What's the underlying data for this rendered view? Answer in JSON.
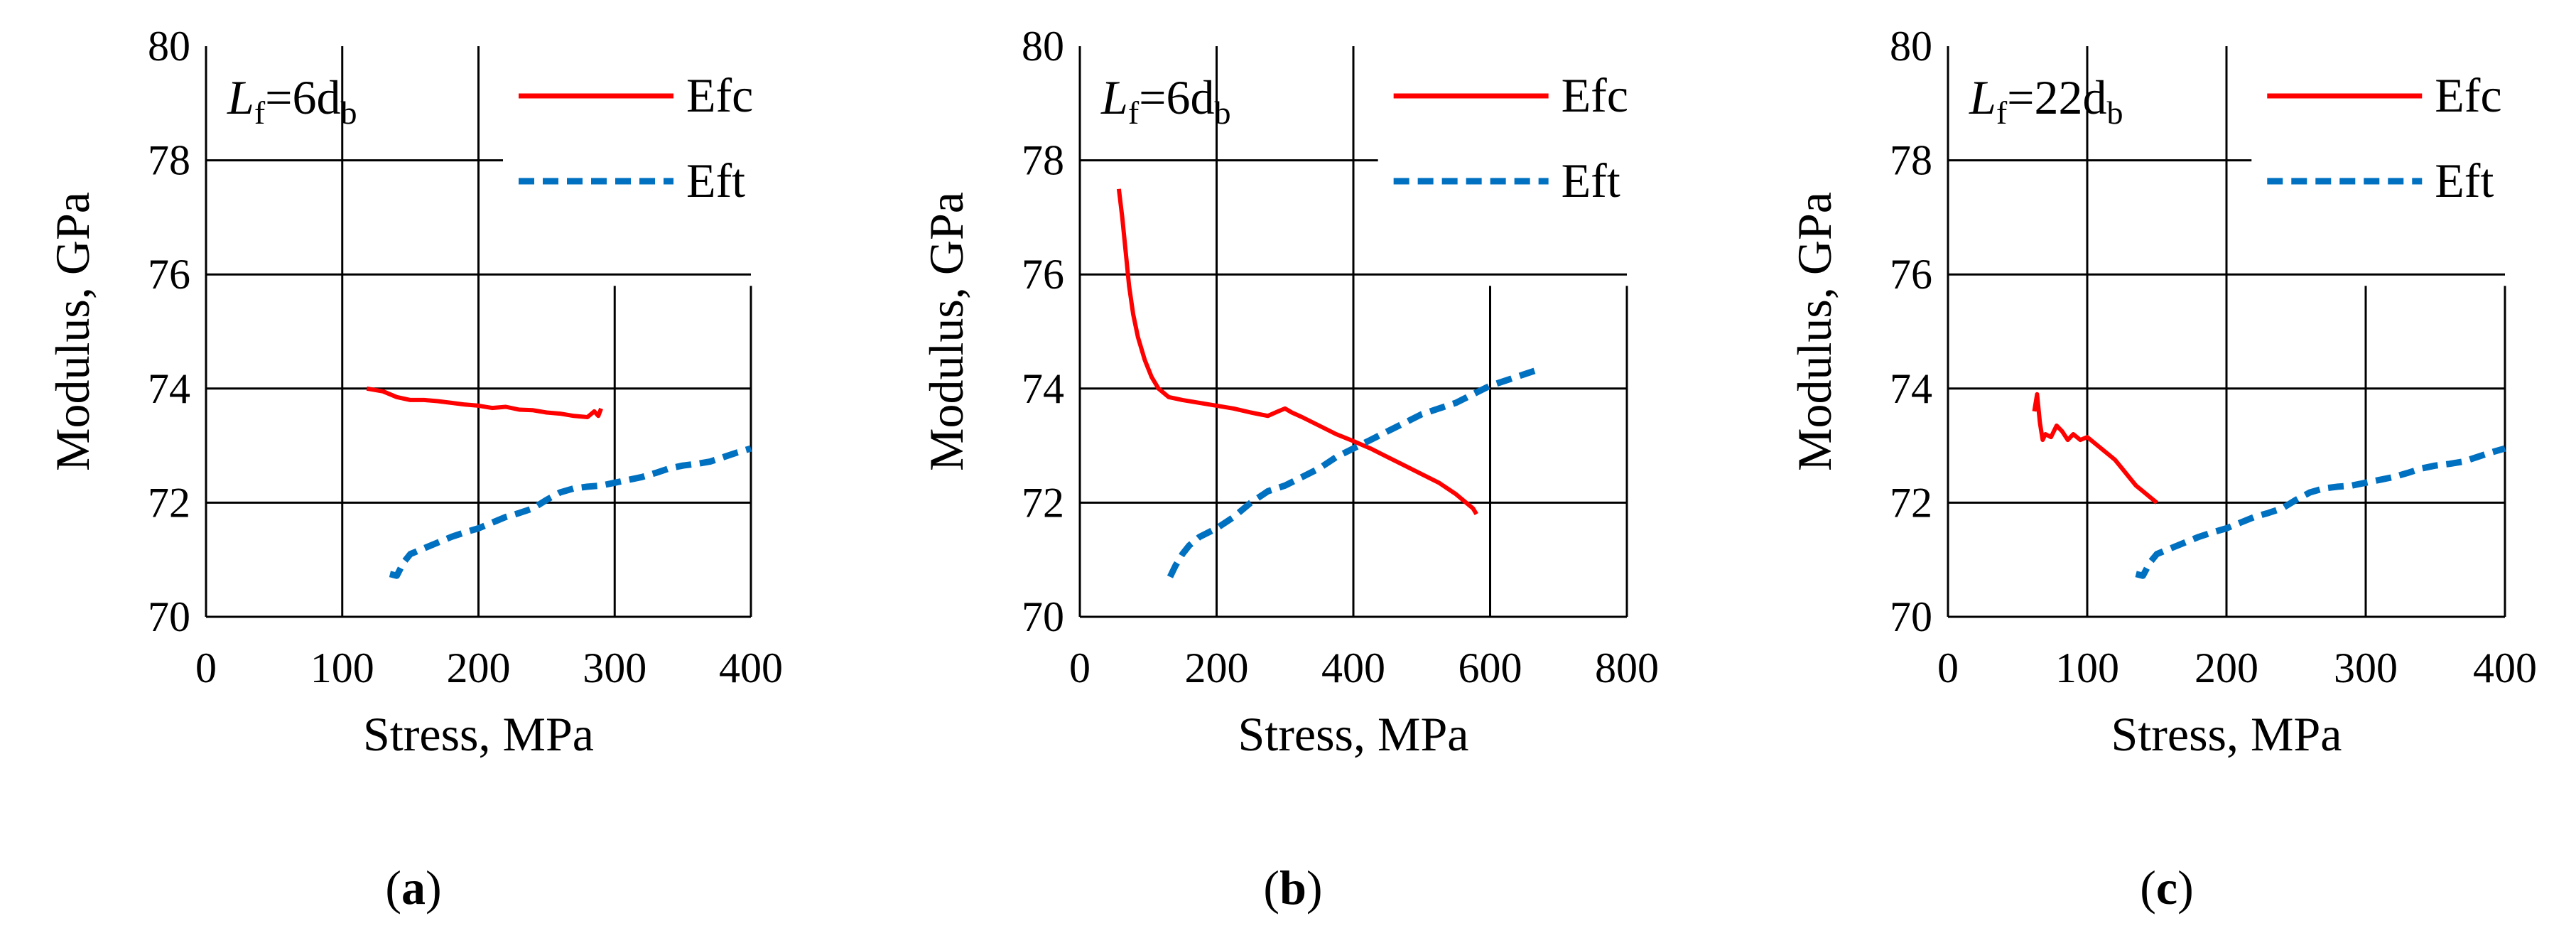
{
  "figure": {
    "colors": {
      "efc": "#ff0000",
      "eft": "#0070c0",
      "grid": "#000000"
    }
  },
  "chart_data": [
    {
      "type": "line",
      "panel_label": "a",
      "annotation": {
        "main": "L",
        "sub1": "f",
        "eq": "=6d",
        "sub2": "b"
      },
      "xlabel": "Stress, MPa",
      "ylabel": "Modulus, GPa",
      "xlim": [
        0,
        400
      ],
      "ylim": [
        70,
        80
      ],
      "xticks": [
        "0",
        "100",
        "200",
        "300",
        "400"
      ],
      "yticks": [
        "70",
        "72",
        "74",
        "76",
        "78",
        "80"
      ],
      "legend": [
        "Efc",
        "Eft"
      ],
      "series": [
        {
          "name": "Efc",
          "style": "solid",
          "x": [
            118,
            130,
            140,
            150,
            160,
            170,
            180,
            190,
            200,
            210,
            220,
            230,
            240,
            250,
            260,
            270,
            280,
            285,
            288,
            290
          ],
          "y": [
            74.0,
            73.95,
            73.85,
            73.8,
            73.8,
            73.78,
            73.75,
            73.72,
            73.7,
            73.66,
            73.68,
            73.63,
            73.62,
            73.58,
            73.56,
            73.52,
            73.5,
            73.6,
            73.52,
            73.65
          ]
        },
        {
          "name": "Eft",
          "style": "dashed",
          "x": [
            135,
            140,
            145,
            150,
            160,
            170,
            180,
            190,
            200,
            210,
            220,
            230,
            240,
            250,
            260,
            270,
            280,
            290,
            300,
            310,
            320,
            330,
            340,
            350,
            360,
            370,
            380,
            390,
            400
          ],
          "y": [
            70.75,
            70.72,
            70.95,
            71.1,
            71.2,
            71.3,
            71.4,
            71.48,
            71.55,
            71.65,
            71.75,
            71.82,
            71.9,
            72.05,
            72.18,
            72.25,
            72.28,
            72.3,
            72.35,
            72.4,
            72.45,
            72.52,
            72.6,
            72.65,
            72.68,
            72.72,
            72.8,
            72.88,
            72.95
          ]
        }
      ]
    },
    {
      "type": "line",
      "panel_label": "b",
      "annotation": {
        "main": "L",
        "sub1": "f",
        "eq": "=6d",
        "sub2": "b"
      },
      "xlabel": "Stress, MPa",
      "ylabel": "Modulus, GPa",
      "xlim": [
        0,
        800
      ],
      "ylim": [
        70,
        80
      ],
      "xticks": [
        "0",
        "200",
        "400",
        "600",
        "800"
      ],
      "yticks": [
        "70",
        "72",
        "74",
        "76",
        "78",
        "80"
      ],
      "legend": [
        "Efc",
        "Eft"
      ],
      "series": [
        {
          "name": "Efc",
          "style": "solid",
          "x": [
            57,
            62,
            67,
            72,
            78,
            85,
            95,
            105,
            115,
            130,
            150,
            175,
            200,
            225,
            250,
            275,
            290,
            300,
            310,
            325,
            350,
            375,
            400,
            425,
            450,
            475,
            500,
            525,
            550,
            565,
            575,
            580
          ],
          "y": [
            77.5,
            77.0,
            76.4,
            75.8,
            75.3,
            74.9,
            74.5,
            74.2,
            74.0,
            73.85,
            73.8,
            73.75,
            73.7,
            73.65,
            73.58,
            73.52,
            73.6,
            73.65,
            73.58,
            73.5,
            73.35,
            73.2,
            73.08,
            72.95,
            72.8,
            72.65,
            72.5,
            72.35,
            72.15,
            72.0,
            71.9,
            71.8
          ]
        },
        {
          "name": "Eft",
          "style": "dashed",
          "x": [
            132,
            140,
            150,
            160,
            175,
            200,
            225,
            250,
            275,
            300,
            325,
            350,
            375,
            400,
            425,
            450,
            475,
            500,
            525,
            550,
            575,
            600,
            625,
            650,
            675
          ],
          "y": [
            70.7,
            70.9,
            71.1,
            71.25,
            71.4,
            71.55,
            71.75,
            72.0,
            72.2,
            72.3,
            72.45,
            72.6,
            72.8,
            72.95,
            73.1,
            73.25,
            73.4,
            73.55,
            73.65,
            73.75,
            73.9,
            74.05,
            74.15,
            74.25,
            74.35
          ]
        }
      ]
    },
    {
      "type": "line",
      "panel_label": "c",
      "annotation": {
        "main": "L",
        "sub1": "f",
        "eq": "=22d",
        "sub2": "b"
      },
      "xlabel": "Stress, MPa",
      "ylabel": "Modulus, GPa",
      "xlim": [
        0,
        400
      ],
      "ylim": [
        70,
        80
      ],
      "xticks": [
        "0",
        "100",
        "200",
        "300",
        "400"
      ],
      "yticks": [
        "70",
        "72",
        "74",
        "76",
        "78",
        "80"
      ],
      "legend": [
        "Efc",
        "Eft"
      ],
      "series": [
        {
          "name": "Efc",
          "style": "solid",
          "x": [
            62,
            64,
            66,
            68,
            70,
            74,
            78,
            82,
            86,
            90,
            95,
            100,
            105,
            110,
            115,
            120,
            125,
            130,
            135,
            140,
            145,
            150
          ],
          "y": [
            73.6,
            73.9,
            73.4,
            73.1,
            73.2,
            73.15,
            73.35,
            73.25,
            73.1,
            73.2,
            73.1,
            73.15,
            73.05,
            72.95,
            72.85,
            72.75,
            72.6,
            72.45,
            72.3,
            72.2,
            72.1,
            72.0
          ]
        },
        {
          "name": "Eft",
          "style": "dashed",
          "x": [
            135,
            140,
            145,
            150,
            160,
            170,
            180,
            190,
            200,
            210,
            220,
            230,
            240,
            250,
            260,
            270,
            280,
            290,
            300,
            310,
            320,
            330,
            340,
            350,
            360,
            370,
            380,
            390,
            400
          ],
          "y": [
            70.75,
            70.72,
            70.95,
            71.1,
            71.2,
            71.3,
            71.4,
            71.48,
            71.55,
            71.65,
            71.75,
            71.82,
            71.9,
            72.05,
            72.18,
            72.25,
            72.28,
            72.3,
            72.35,
            72.4,
            72.45,
            72.52,
            72.6,
            72.65,
            72.68,
            72.72,
            72.8,
            72.88,
            72.95
          ]
        }
      ]
    }
  ]
}
